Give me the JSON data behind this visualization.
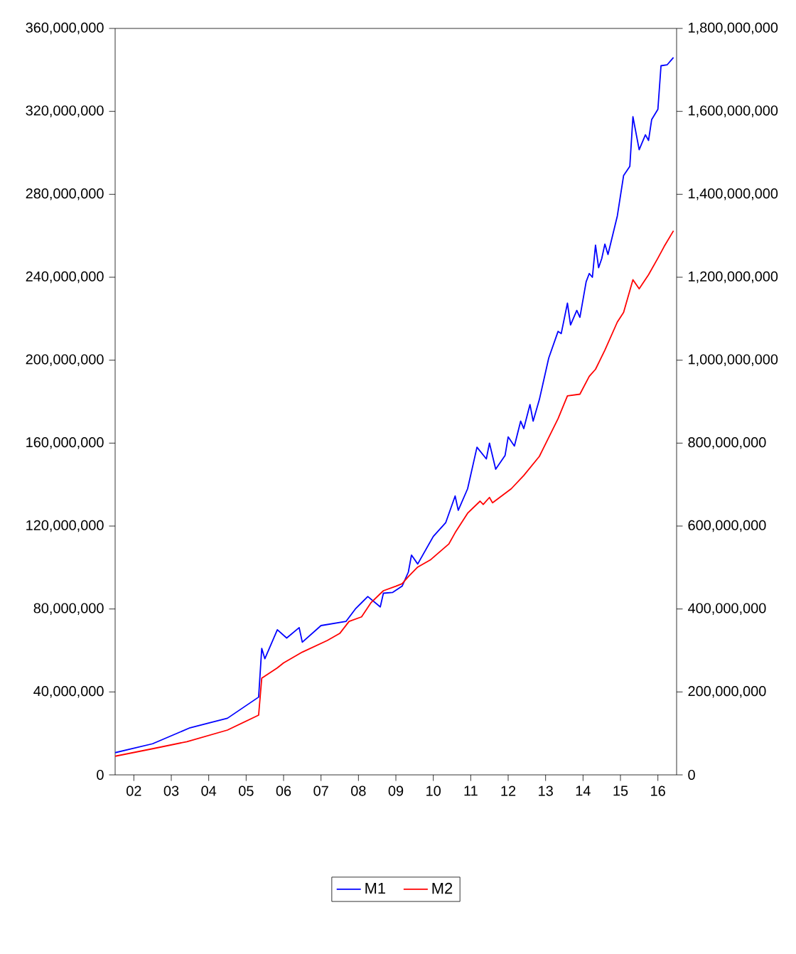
{
  "chart_data": {
    "type": "line",
    "xlim": [
      "2002-01",
      "2017-01"
    ],
    "xticks": [
      {
        "value": "2002-07",
        "label": "02"
      },
      {
        "value": "2003-07",
        "label": "03"
      },
      {
        "value": "2004-07",
        "label": "04"
      },
      {
        "value": "2005-07",
        "label": "05"
      },
      {
        "value": "2006-07",
        "label": "06"
      },
      {
        "value": "2007-07",
        "label": "07"
      },
      {
        "value": "2008-07",
        "label": "08"
      },
      {
        "value": "2009-07",
        "label": "09"
      },
      {
        "value": "2010-07",
        "label": "10"
      },
      {
        "value": "2011-07",
        "label": "11"
      },
      {
        "value": "2012-07",
        "label": "12"
      },
      {
        "value": "2013-07",
        "label": "13"
      },
      {
        "value": "2014-07",
        "label": "14"
      },
      {
        "value": "2015-07",
        "label": "15"
      },
      {
        "value": "2016-07",
        "label": "16"
      }
    ],
    "ylim": [
      0,
      360000000
    ],
    "yticks": [
      0,
      {
        "value": 40000000,
        "label": "40,000,000"
      },
      {
        "value": 80000000,
        "label": "80,000,000"
      },
      {
        "value": 120000000,
        "label": "120,000,000"
      },
      {
        "value": 160000000,
        "label": "160,000,000"
      },
      {
        "value": 200000000,
        "label": "200,000,000"
      },
      {
        "value": 240000000,
        "label": "240,000,000"
      },
      {
        "value": 280000000,
        "label": "280,000,000"
      },
      {
        "value": 320000000,
        "label": "320,000,000"
      },
      {
        "value": 360000000,
        "label": "360,000,000"
      }
    ],
    "y2lim": [
      0,
      1800000000
    ],
    "y2ticks": [
      0,
      {
        "value": 200000000,
        "label": "200,000,000"
      },
      {
        "value": 400000000,
        "label": "400,000,000"
      },
      {
        "value": 600000000,
        "label": "600,000,000"
      },
      {
        "value": 800000000,
        "label": "800,000,000"
      },
      {
        "value": 1000000000,
        "label": "1,000,000,000"
      },
      {
        "value": 1200000000,
        "label": "1,200,000,000"
      },
      {
        "value": 1400000000,
        "label": "1,400,000,000"
      },
      {
        "value": 1600000000,
        "label": "1,600,000,000"
      },
      {
        "value": 1800000000,
        "label": "1,800,000,000"
      }
    ],
    "legend": "bottom",
    "line_style": "solid",
    "series": [
      {
        "name": "M1",
        "color": "#0000ff",
        "axis": "y",
        "x": [
          "2002-01",
          "2003-01",
          "2004-01",
          "2005-01",
          "2005-11",
          "2005-12",
          "2006-01",
          "2006-05",
          "2006-08",
          "2006-12",
          "2007-01",
          "2007-07",
          "2008-03",
          "2008-06",
          "2008-10",
          "2009-02",
          "2009-03",
          "2009-06",
          "2009-09",
          "2009-11",
          "2009-12",
          "2010-02",
          "2010-07",
          "2010-11",
          "2011-02",
          "2011-03",
          "2011-06",
          "2011-09",
          "2011-12",
          "2012-01",
          "2012-03",
          "2012-06",
          "2012-07",
          "2012-09",
          "2012-11",
          "2012-12",
          "2013-02",
          "2013-03",
          "2013-05",
          "2013-08",
          "2013-11",
          "2013-12",
          "2014-02",
          "2014-03",
          "2014-05",
          "2014-06",
          "2014-08",
          "2014-09",
          "2014-10",
          "2014-11",
          "2014-12",
          "2015-01",
          "2015-02",
          "2015-03",
          "2015-06",
          "2015-08",
          "2015-10",
          "2015-11",
          "2016-01",
          "2016-03",
          "2016-04",
          "2016-05",
          "2016-07",
          "2016-08",
          "2016-10",
          "2016-12"
        ],
        "values": [
          10700000,
          15000000,
          22700000,
          27300000,
          37500000,
          61000000,
          56000000,
          70000000,
          66000000,
          71000000,
          64000000,
          72000000,
          74000000,
          80000000,
          86000000,
          81000000,
          87600000,
          88000000,
          91000000,
          97800000,
          106000000,
          101700000,
          115000000,
          121700000,
          134500000,
          127600000,
          138000000,
          158000000,
          152400000,
          160000000,
          147400000,
          154000000,
          163000000,
          158600000,
          170600000,
          167000000,
          178600000,
          170600000,
          181000000,
          201000000,
          213900000,
          212800000,
          227500000,
          217000000,
          224000000,
          220700000,
          237800000,
          241800000,
          240000000,
          255500000,
          244600000,
          249000000,
          256000000,
          251000000,
          269600000,
          289000000,
          293500000,
          317400000,
          301500000,
          308700000,
          306000000,
          316000000,
          321000000,
          342000000,
          342500000,
          346000000
        ]
      },
      {
        "name": "M2",
        "color": "#ff0000",
        "axis": "y2",
        "x": [
          "2002-01",
          "2003-01",
          "2003-12",
          "2005-01",
          "2005-11",
          "2005-12",
          "2006-05",
          "2006-07",
          "2007-01",
          "2007-09",
          "2008-01",
          "2008-04",
          "2008-08",
          "2008-11",
          "2009-03",
          "2009-07",
          "2009-09",
          "2009-11",
          "2010-02",
          "2010-06",
          "2010-12",
          "2011-02",
          "2011-06",
          "2011-10",
          "2011-11",
          "2012-01",
          "2012-02",
          "2012-08",
          "2012-12",
          "2013-05",
          "2013-11",
          "2014-02",
          "2014-06",
          "2014-09",
          "2014-11",
          "2015-02",
          "2015-06",
          "2015-08",
          "2015-11",
          "2016-01",
          "2016-04",
          "2016-07",
          "2016-09",
          "2016-12"
        ],
        "values": [
          45000000,
          63000000,
          80000000,
          108000000,
          144000000,
          233000000,
          258000000,
          270000000,
          296000000,
          324000000,
          341000000,
          370000000,
          381000000,
          415000000,
          444000000,
          455000000,
          461000000,
          478000000,
          501000000,
          518000000,
          557000000,
          584000000,
          631000000,
          660000000,
          652000000,
          669000000,
          656000000,
          690000000,
          722000000,
          768000000,
          859000000,
          914000000,
          918000000,
          961000000,
          978000000,
          1024000000,
          1092000000,
          1115000000,
          1194000000,
          1172000000,
          1206000000,
          1246000000,
          1274000000,
          1312000000
        ]
      }
    ]
  }
}
